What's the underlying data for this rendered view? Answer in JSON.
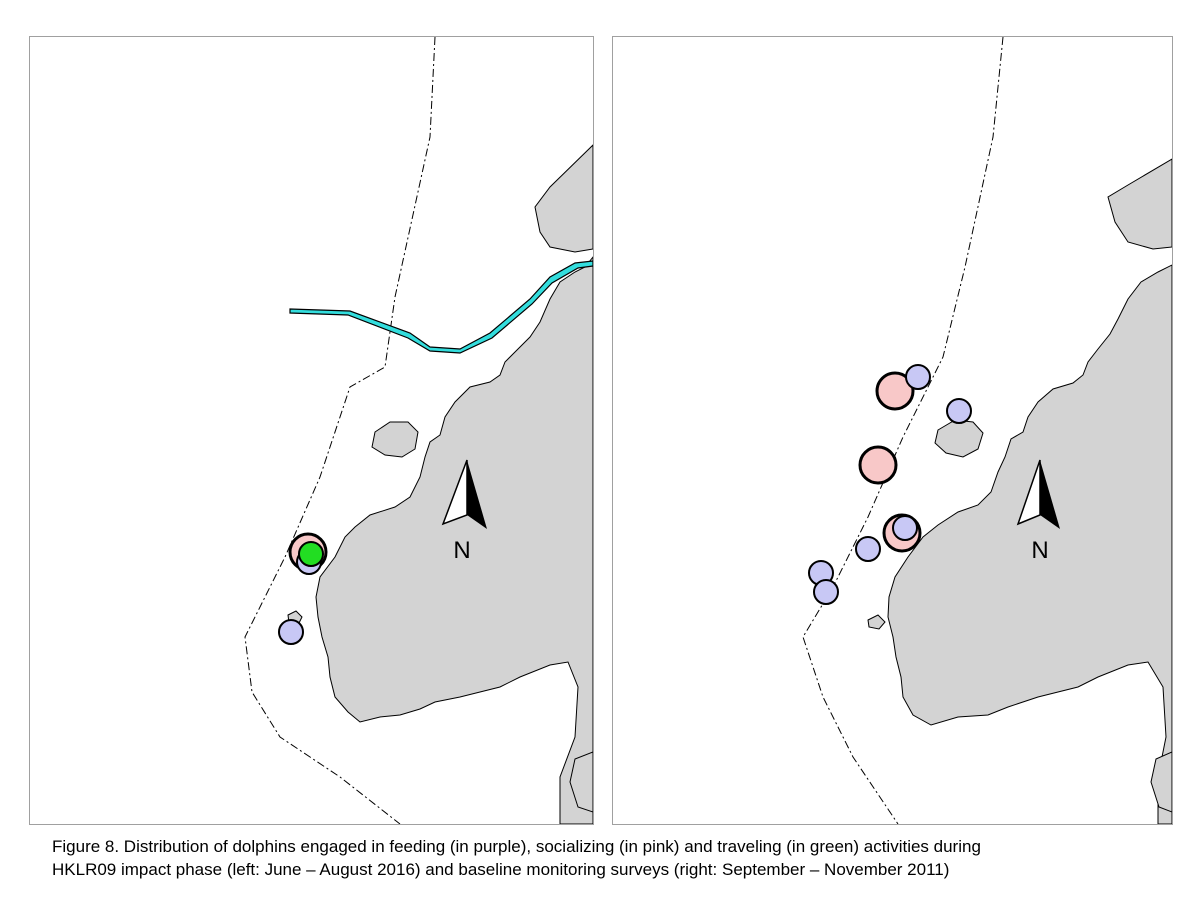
{
  "caption": {
    "line1": "Figure 8.  Distribution of dolphins engaged in feeding (in purple), socializing (in pink) and traveling (in green) activities during",
    "line2": "HKLR09 impact phase (left: June – August 2016) and baseline monitoring surveys (right: September – November 2011)"
  },
  "north_label": "N",
  "legend_colors": {
    "feeding": "#c8c8f5",
    "socializing": "#f8c8c8",
    "traveling": "#22dd22",
    "land": "#d3d3d3",
    "bridge": "#33dddd"
  },
  "maps": {
    "left": {
      "period": "June – August 2016",
      "sightings": [
        {
          "activity": "socializing",
          "size": "large"
        },
        {
          "activity": "feeding",
          "size": "small"
        },
        {
          "activity": "traveling",
          "size": "small"
        },
        {
          "activity": "feeding",
          "size": "small"
        }
      ]
    },
    "right": {
      "period": "September – November 2011",
      "sightings": [
        {
          "activity": "socializing",
          "size": "large"
        },
        {
          "activity": "feeding",
          "size": "small"
        },
        {
          "activity": "feeding",
          "size": "small"
        },
        {
          "activity": "socializing",
          "size": "large"
        },
        {
          "activity": "socializing",
          "size": "large"
        },
        {
          "activity": "feeding",
          "size": "small"
        },
        {
          "activity": "feeding",
          "size": "small"
        },
        {
          "activity": "feeding",
          "size": "small"
        },
        {
          "activity": "feeding",
          "size": "small"
        }
      ]
    }
  }
}
